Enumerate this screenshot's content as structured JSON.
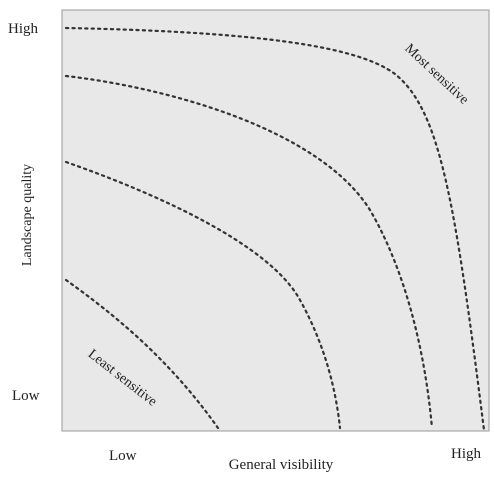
{
  "axes": {
    "y_label": "Landscape quality",
    "y_high": "High",
    "y_low": "Low",
    "x_label": "General visibility",
    "x_low": "Low",
    "x_high": "High"
  },
  "annotations": {
    "most": "Most sensitive",
    "least": "Least sensitive"
  },
  "colors": {
    "plot_fill": "#e8e8e8",
    "plot_border": "#999999",
    "curve": "#333333"
  }
}
